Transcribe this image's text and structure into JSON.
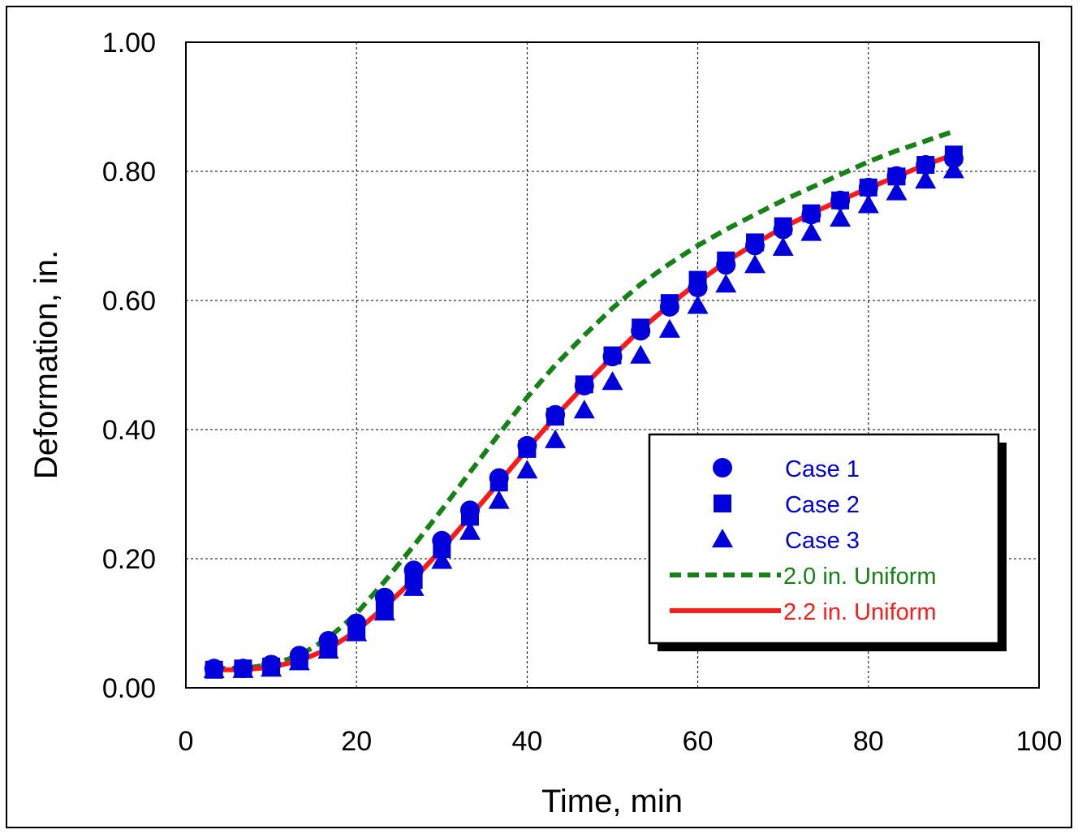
{
  "chart_data": {
    "type": "scatter",
    "xlabel": "Time, min",
    "ylabel": "Deformation, in.",
    "xlim": [
      0,
      100
    ],
    "ylim": [
      0,
      1
    ],
    "x_ticks": [
      "0",
      "20",
      "40",
      "60",
      "80",
      "100"
    ],
    "y_ticks": [
      "0.00",
      "0.20",
      "0.40",
      "0.60",
      "0.80",
      "1.00"
    ],
    "grid": true,
    "legend_position": "lower-right",
    "series": [
      {
        "name": "Case 1",
        "marker": "circle",
        "color": "#0000dd",
        "x": [
          3.3,
          6.7,
          10,
          13.3,
          16.7,
          20,
          23.3,
          26.7,
          30,
          33.3,
          36.7,
          40,
          43.3,
          46.7,
          50,
          53.3,
          56.7,
          60,
          63.3,
          66.7,
          70,
          73.3,
          76.7,
          80,
          83.3,
          86.7,
          90
        ],
        "y": [
          0.03,
          0.03,
          0.036,
          0.05,
          0.073,
          0.1,
          0.14,
          0.182,
          0.228,
          0.275,
          0.325,
          0.375,
          0.423,
          0.468,
          0.513,
          0.553,
          0.59,
          0.62,
          0.655,
          0.685,
          0.71,
          0.733,
          0.755,
          0.775,
          0.793,
          0.81,
          0.82
        ]
      },
      {
        "name": "Case 2",
        "marker": "square",
        "color": "#0000dd",
        "x": [
          3.3,
          6.7,
          10,
          13.3,
          16.7,
          20,
          23.3,
          26.7,
          30,
          33.3,
          36.7,
          40,
          43.3,
          46.7,
          50,
          53.3,
          56.7,
          60,
          63.3,
          66.7,
          70,
          73.3,
          76.7,
          80,
          83.3,
          86.7,
          90
        ],
        "y": [
          0.028,
          0.03,
          0.033,
          0.043,
          0.062,
          0.09,
          0.123,
          0.167,
          0.215,
          0.265,
          0.318,
          0.37,
          0.42,
          0.47,
          0.515,
          0.558,
          0.596,
          0.632,
          0.662,
          0.69,
          0.715,
          0.735,
          0.755,
          0.775,
          0.792,
          0.81,
          0.826
        ]
      },
      {
        "name": "Case 3",
        "marker": "triangle",
        "color": "#0000dd",
        "x": [
          3.3,
          6.7,
          10,
          13.3,
          16.7,
          20,
          23.3,
          26.7,
          30,
          33.3,
          36.7,
          40,
          43.3,
          46.7,
          50,
          53.3,
          56.7,
          60,
          63.3,
          66.7,
          70,
          73.3,
          76.7,
          80,
          83.3,
          86.7,
          90
        ],
        "y": [
          0.028,
          0.028,
          0.03,
          0.04,
          0.058,
          0.085,
          0.117,
          0.155,
          0.197,
          0.242,
          0.29,
          0.337,
          0.384,
          0.43,
          0.474,
          0.515,
          0.555,
          0.592,
          0.625,
          0.655,
          0.682,
          0.705,
          0.727,
          0.748,
          0.768,
          0.786,
          0.802
        ]
      },
      {
        "name": "2.0 in. Uniform",
        "line": "dashed",
        "color": "#148214",
        "x": [
          3.3,
          6.7,
          10,
          13.3,
          16.7,
          20,
          23.3,
          26.7,
          30,
          33.3,
          36.7,
          40,
          43.3,
          46.7,
          50,
          53.3,
          56.7,
          60,
          63.3,
          66.7,
          70,
          73.3,
          76.7,
          80,
          83.3,
          86.7,
          90
        ],
        "y": [
          0.03,
          0.03,
          0.036,
          0.05,
          0.077,
          0.115,
          0.165,
          0.22,
          0.276,
          0.334,
          0.393,
          0.45,
          0.5,
          0.546,
          0.588,
          0.625,
          0.657,
          0.685,
          0.71,
          0.733,
          0.755,
          0.775,
          0.795,
          0.815,
          0.832,
          0.847,
          0.862
        ]
      },
      {
        "name": "2.2 in. Uniform",
        "line": "solid",
        "color": "#ff1a1a",
        "x": [
          3.3,
          6.7,
          10,
          13.3,
          16.7,
          20,
          23.3,
          26.7,
          30,
          33.3,
          36.7,
          40,
          43.3,
          46.7,
          50,
          53.3,
          56.7,
          60,
          63.3,
          66.7,
          70,
          73.3,
          76.7,
          80,
          83.3,
          86.7,
          90
        ],
        "y": [
          0.028,
          0.028,
          0.032,
          0.042,
          0.06,
          0.088,
          0.125,
          0.168,
          0.215,
          0.265,
          0.318,
          0.37,
          0.42,
          0.468,
          0.513,
          0.555,
          0.593,
          0.628,
          0.66,
          0.688,
          0.713,
          0.735,
          0.755,
          0.774,
          0.792,
          0.81,
          0.826
        ]
      }
    ]
  }
}
